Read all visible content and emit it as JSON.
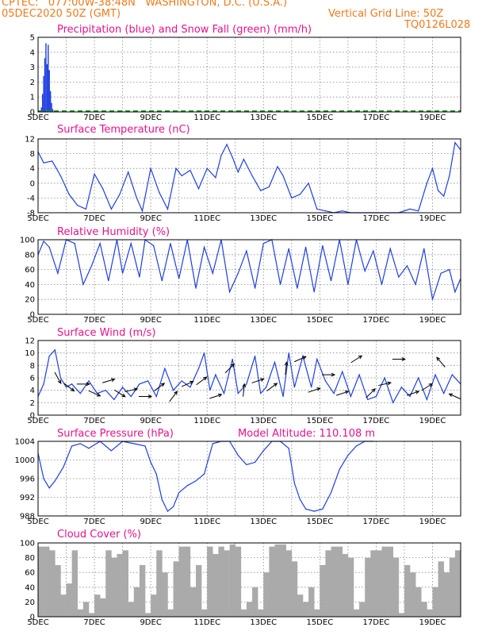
{
  "header": {
    "line1": "CPTEC:   077:00W-38:48N   WASHINGTON, D.C. (U.S.A.)",
    "line2": "05DEC2020 50Z (GMT)",
    "grid_note": "Vertical Grid Line: 50Z",
    "code": "TQ0126L028"
  },
  "colors": {
    "header": "#f07a1c",
    "title": "#e8128a",
    "series": "#1f3fe0",
    "snow": "#1c9a1c",
    "cloud": "#aaaaaa",
    "grid": "#888888"
  },
  "x_axis": {
    "day_labels": [
      "5DEC",
      "7DEC",
      "9DEC",
      "11DEC",
      "13DEC",
      "15DEC",
      "17DEC",
      "19DEC"
    ],
    "x_start": 5,
    "x_end": 20
  },
  "chart_data": [
    {
      "id": "precip",
      "type": "bar",
      "title": "Precipitation (blue) and Snow Fall (green) (mm/h)",
      "ylim": [
        0,
        5
      ],
      "yticks": [
        0,
        1,
        2,
        3,
        4,
        5
      ],
      "series": [
        {
          "name": "Precipitation",
          "color": "#1f3fe0",
          "x": [
            5.12,
            5.16,
            5.2,
            5.24,
            5.28,
            5.32,
            5.36,
            5.4,
            5.44,
            5.48,
            5.52
          ],
          "values": [
            0.3,
            1.2,
            2.4,
            3.6,
            4.6,
            3.2,
            4.5,
            2.8,
            1.4,
            0.6,
            0.2
          ]
        },
        {
          "name": "Snow Fall",
          "color": "#1c9a1c",
          "x": [
            5,
            20
          ],
          "values": [
            0,
            0
          ]
        }
      ]
    },
    {
      "id": "temp",
      "type": "line",
      "title": "Surface Temperature (nC)",
      "ylim": [
        -8,
        12
      ],
      "yticks": [
        -8,
        -4,
        0,
        4,
        8,
        12
      ],
      "series": [
        {
          "x": [
            5.0,
            5.2,
            5.5,
            5.8,
            6.1,
            6.4,
            6.7,
            7.0,
            7.3,
            7.6,
            7.9,
            8.2,
            8.5,
            8.7,
            9.0,
            9.3,
            9.6,
            9.9,
            10.1,
            10.4,
            10.7,
            11.0,
            11.3,
            11.5,
            11.7,
            11.9,
            12.1,
            12.3,
            12.6,
            12.9,
            13.2,
            13.5,
            13.7,
            14.0,
            14.3,
            14.6,
            14.9,
            15.2,
            15.5,
            15.8,
            16.1,
            16.4,
            16.7,
            17.0,
            17.4,
            17.8,
            18.2,
            18.5,
            18.8,
            19.0,
            19.2,
            19.4,
            19.6,
            19.8,
            20.0
          ],
          "values": [
            8.5,
            5.5,
            6.0,
            2.0,
            -3.0,
            -6.0,
            -7.0,
            2.5,
            -1.5,
            -7.0,
            -3.0,
            3.0,
            -4.0,
            -7.5,
            4.0,
            -2.5,
            -7.0,
            4.0,
            2.0,
            3.5,
            -1.5,
            4.0,
            1.5,
            7.5,
            10.5,
            7.0,
            3.0,
            6.5,
            2.0,
            -2.0,
            -1.0,
            4.5,
            2.0,
            -4.0,
            -3.0,
            0.0,
            -7.0,
            -7.5,
            -8.5,
            -7.5,
            -10.0,
            -8.5,
            -8.5,
            -9.0,
            -9.0,
            -8.0,
            -7.0,
            -7.5,
            0.0,
            4.0,
            -2.0,
            -3.5,
            2.0,
            11.0,
            9.0
          ],
          "color": "#1f3fe0"
        }
      ]
    },
    {
      "id": "rh",
      "type": "line",
      "title": "Relative Humidity (%)",
      "ylim": [
        0,
        100
      ],
      "yticks": [
        0,
        20,
        40,
        60,
        80,
        100
      ],
      "series": [
        {
          "x": [
            5.0,
            5.2,
            5.4,
            5.7,
            6.0,
            6.3,
            6.6,
            6.9,
            7.2,
            7.5,
            7.8,
            8.0,
            8.3,
            8.6,
            8.8,
            9.1,
            9.4,
            9.7,
            10.0,
            10.3,
            10.6,
            10.9,
            11.2,
            11.5,
            11.8,
            12.1,
            12.4,
            12.7,
            13.0,
            13.3,
            13.6,
            13.9,
            14.2,
            14.5,
            14.8,
            15.1,
            15.4,
            15.7,
            16.0,
            16.3,
            16.6,
            16.9,
            17.2,
            17.5,
            17.8,
            18.1,
            18.4,
            18.7,
            19.0,
            19.3,
            19.6,
            19.8,
            20.0
          ],
          "values": [
            80,
            98,
            90,
            55,
            100,
            95,
            40,
            65,
            95,
            45,
            100,
            55,
            95,
            50,
            100,
            92,
            45,
            95,
            48,
            100,
            35,
            90,
            55,
            100,
            30,
            55,
            85,
            35,
            95,
            100,
            40,
            88,
            35,
            90,
            30,
            92,
            45,
            100,
            40,
            100,
            58,
            85,
            40,
            88,
            50,
            65,
            40,
            88,
            20,
            55,
            60,
            30,
            48
          ],
          "color": "#1f3fe0"
        }
      ]
    },
    {
      "id": "wind",
      "type": "line",
      "title": "Surface Wind (m/s)",
      "ylim": [
        0,
        12
      ],
      "yticks": [
        0,
        2,
        4,
        6,
        8,
        10,
        12
      ],
      "series": [
        {
          "x": [
            5.0,
            5.2,
            5.4,
            5.6,
            5.8,
            6.0,
            6.2,
            6.5,
            6.8,
            7.1,
            7.4,
            7.7,
            8.0,
            8.3,
            8.6,
            8.9,
            9.2,
            9.5,
            9.8,
            10.1,
            10.4,
            10.7,
            10.9,
            11.1,
            11.3,
            11.6,
            11.9,
            12.1,
            12.4,
            12.7,
            12.9,
            13.1,
            13.4,
            13.7,
            13.9,
            14.1,
            14.4,
            14.7,
            14.9,
            15.2,
            15.5,
            15.8,
            16.1,
            16.4,
            16.7,
            17.0,
            17.3,
            17.6,
            17.9,
            18.2,
            18.5,
            18.8,
            19.1,
            19.4,
            19.7,
            20.0
          ],
          "values": [
            3.0,
            5.0,
            9.5,
            10.5,
            6.0,
            4.5,
            5.0,
            3.5,
            5.5,
            3.5,
            4.0,
            2.5,
            4.5,
            3.0,
            5.0,
            5.5,
            3.0,
            7.5,
            4.0,
            5.5,
            4.5,
            7.5,
            10.0,
            4.0,
            6.5,
            3.5,
            9.0,
            3.5,
            5.0,
            9.5,
            3.5,
            4.5,
            8.5,
            3.0,
            10.0,
            4.5,
            9.5,
            4.5,
            9.0,
            5.5,
            3.5,
            7.0,
            3.0,
            6.5,
            2.5,
            3.0,
            6.0,
            2.0,
            4.5,
            3.0,
            6.0,
            2.5,
            6.5,
            3.5,
            6.5,
            5.0
          ],
          "color": "#1f3fe0"
        }
      ],
      "arrows": {
        "x": [
          5.7,
          6.1,
          6.6,
          7.0,
          7.5,
          7.9,
          8.3,
          8.8,
          9.3,
          9.8,
          10.3,
          10.8,
          11.3,
          11.8,
          12.3,
          12.8,
          13.3,
          13.8,
          14.3,
          14.8,
          15.3,
          15.8,
          16.3,
          16.8,
          17.3,
          17.8,
          18.3,
          18.8,
          19.3,
          19.8
        ],
        "u": [
          0.5,
          0.8,
          1.0,
          0.9,
          1.0,
          0.8,
          0.9,
          1.0,
          0.8,
          0.6,
          0.9,
          0.8,
          0.9,
          0.7,
          0.1,
          0.9,
          0.8,
          0.1,
          0.9,
          0.9,
          1.0,
          0.9,
          0.8,
          0.7,
          0.9,
          1.0,
          0.9,
          0.8,
          -0.6,
          -0.9
        ],
        "v": [
          -0.9,
          -0.6,
          0.0,
          -0.4,
          0.3,
          -0.5,
          0.2,
          0.0,
          0.6,
          0.8,
          0.4,
          0.6,
          0.3,
          0.7,
          1.0,
          0.3,
          0.6,
          1.0,
          0.4,
          0.3,
          0.0,
          0.3,
          0.5,
          0.7,
          0.2,
          0.0,
          0.3,
          0.5,
          0.7,
          0.4
        ]
      }
    },
    {
      "id": "pres",
      "type": "line",
      "title": "Surface Pressure (hPa)",
      "subtitle": "Model Altitude: 110.108  m",
      "ylim": [
        988,
        1004
      ],
      "yticks": [
        988,
        992,
        996,
        1000,
        1004
      ],
      "series": [
        {
          "x": [
            5.0,
            5.2,
            5.4,
            5.6,
            5.9,
            6.2,
            6.5,
            6.8,
            7.2,
            7.6,
            8.0,
            8.4,
            8.8,
            9.0,
            9.2,
            9.4,
            9.6,
            9.8,
            10.0,
            10.3,
            10.6,
            10.9,
            11.2,
            11.5,
            11.8,
            12.1,
            12.4,
            12.7,
            13.0,
            13.3,
            13.6,
            13.9,
            14.1,
            14.3,
            14.5,
            14.8,
            15.1,
            15.4,
            15.7,
            16.0,
            16.3,
            16.6,
            16.9
          ],
          "values": [
            1001.5,
            996.0,
            994.0,
            995.5,
            998.5,
            1003.0,
            1003.5,
            1002.5,
            1004.0,
            1002.0,
            1004.5,
            1003.5,
            1003.0,
            999.5,
            997.0,
            991.5,
            989.0,
            990.0,
            993.0,
            994.5,
            995.5,
            997.0,
            1003.5,
            1005.0,
            1005.0,
            1001.0,
            999.0,
            999.5,
            1002.0,
            1004.0,
            1004.5,
            1002.5,
            995.0,
            991.5,
            989.5,
            989.0,
            989.5,
            993.0,
            998.0,
            1001.0,
            1003.0,
            1004.0,
            1005.5
          ],
          "color": "#1f3fe0"
        }
      ]
    },
    {
      "id": "cloud",
      "type": "bar",
      "title": "Cloud Cover (%)",
      "ylim": [
        0,
        100
      ],
      "yticks": [
        0,
        20,
        40,
        60,
        80,
        100
      ],
      "series": [
        {
          "x": [
            5.0,
            5.2,
            5.4,
            5.6,
            5.8,
            6.0,
            6.2,
            6.4,
            6.6,
            6.8,
            7.0,
            7.2,
            7.4,
            7.6,
            7.8,
            8.0,
            8.2,
            8.4,
            8.6,
            8.8,
            9.0,
            9.2,
            9.4,
            9.6,
            9.8,
            10.0,
            10.2,
            10.4,
            10.6,
            10.8,
            11.0,
            11.2,
            11.4,
            11.6,
            11.8,
            12.0,
            12.2,
            12.4,
            12.6,
            12.8,
            13.0,
            13.2,
            13.4,
            13.6,
            13.8,
            14.0,
            14.2,
            14.4,
            14.6,
            14.8,
            15.0,
            15.2,
            15.4,
            15.6,
            15.8,
            16.0,
            16.2,
            16.4,
            16.6,
            16.8,
            17.0,
            17.2,
            17.4,
            17.6,
            17.8,
            18.0,
            18.2,
            18.4,
            18.6,
            18.8,
            19.0,
            19.2,
            19.4,
            19.6,
            19.8
          ],
          "values": [
            95,
            95,
            90,
            70,
            30,
            45,
            90,
            10,
            20,
            5,
            30,
            25,
            90,
            80,
            85,
            90,
            20,
            40,
            70,
            5,
            30,
            90,
            60,
            10,
            75,
            95,
            95,
            40,
            70,
            10,
            95,
            85,
            95,
            90,
            98,
            95,
            10,
            20,
            40,
            10,
            60,
            95,
            98,
            98,
            90,
            75,
            30,
            20,
            40,
            10,
            70,
            90,
            95,
            95,
            85,
            80,
            10,
            20,
            80,
            90,
            90,
            95,
            95,
            80,
            5,
            70,
            60,
            40,
            20,
            10,
            40,
            75,
            60,
            80,
            90
          ],
          "color": "#aaaaaa"
        }
      ]
    }
  ]
}
